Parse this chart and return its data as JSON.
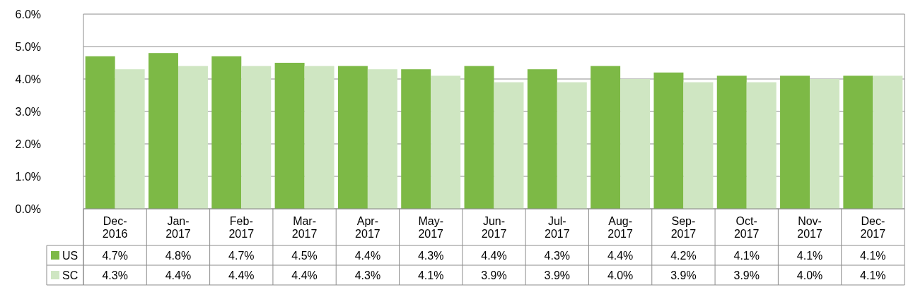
{
  "chart_data": {
    "type": "bar",
    "categories": [
      "Dec-2016",
      "Jan-2017",
      "Feb-2017",
      "Mar-2017",
      "Apr-2017",
      "May-2017",
      "Jun-2017",
      "Jul-2017",
      "Aug-2017",
      "Sep-2017",
      "Oct-2017",
      "Nov-2017",
      "Dec-2017"
    ],
    "series": [
      {
        "name": "US",
        "color": "#7db946",
        "values": [
          4.7,
          4.8,
          4.7,
          4.5,
          4.4,
          4.3,
          4.4,
          4.3,
          4.4,
          4.2,
          4.1,
          4.1,
          4.1
        ],
        "value_labels": [
          "4.7%",
          "4.8%",
          "4.7%",
          "4.5%",
          "4.4%",
          "4.3%",
          "4.4%",
          "4.3%",
          "4.4%",
          "4.2%",
          "4.1%",
          "4.1%",
          "4.1%"
        ]
      },
      {
        "name": "SC",
        "color": "#cfe6c2",
        "values": [
          4.3,
          4.4,
          4.4,
          4.4,
          4.3,
          4.1,
          3.9,
          3.9,
          4.0,
          3.9,
          3.9,
          4.0,
          4.1
        ],
        "value_labels": [
          "4.3%",
          "4.4%",
          "4.4%",
          "4.4%",
          "4.3%",
          "4.1%",
          "3.9%",
          "3.9%",
          "4.0%",
          "3.9%",
          "3.9%",
          "4.0%",
          "4.1%"
        ]
      }
    ],
    "ylim": [
      0,
      6
    ],
    "yticks": [
      {
        "value": 0,
        "label": "0.0%"
      },
      {
        "value": 1,
        "label": "1.0%"
      },
      {
        "value": 2,
        "label": "2.0%"
      },
      {
        "value": 3,
        "label": "3.0%"
      },
      {
        "value": 4,
        "label": "4.0%"
      },
      {
        "value": 5,
        "label": "5.0%"
      },
      {
        "value": 6,
        "label": "6.0%"
      }
    ],
    "grid": "y",
    "legend": "bottom left"
  }
}
